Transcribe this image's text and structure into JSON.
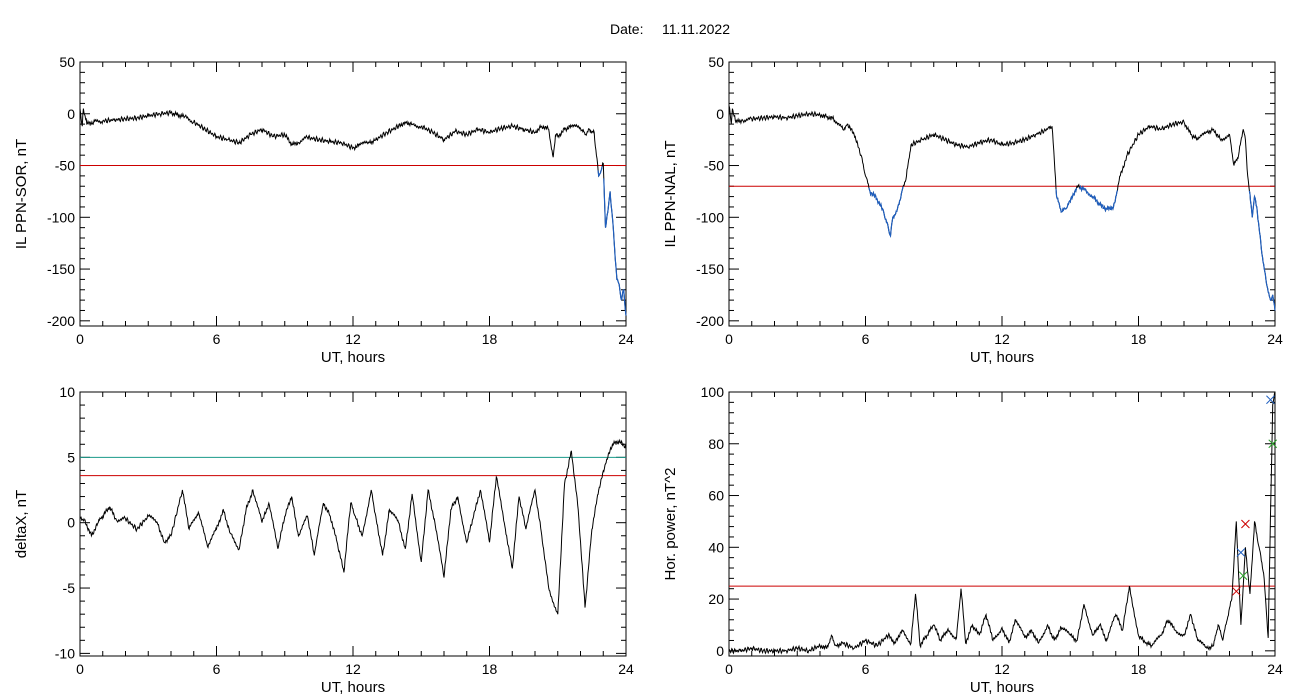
{
  "header": {
    "date_label": "Date:",
    "date_value": "11.11.2022"
  },
  "colors": {
    "data": "#000000",
    "threshold_red": "#cc0000",
    "threshold_teal": "#1a9a8a",
    "highlight_blue": "#1f5fbf",
    "marker_red": "#cc0000",
    "marker_green": "#2ca02c",
    "marker_blue": "#1f5fbf"
  },
  "chart_data": [
    {
      "id": "sor",
      "type": "line",
      "ylabel": "IL PPN-SOR, nT",
      "xlabel": "UT, hours",
      "xlim": [
        0,
        24
      ],
      "ylim": [
        -205,
        50
      ],
      "xticks": [
        0,
        6,
        12,
        18,
        24
      ],
      "yticks": [
        50,
        0,
        -50,
        -100,
        -150,
        -200
      ],
      "ytick_labels": [
        "50",
        "0",
        "-50",
        "-100",
        "-150",
        "-200"
      ],
      "threshold": [
        {
          "value": -50,
          "color": "red"
        }
      ],
      "highlight_below": -50,
      "series": [
        {
          "x": [
            0,
            0.1,
            0.15,
            0.3,
            0.6,
            1,
            1.5,
            2,
            2.5,
            3,
            3.5,
            4,
            4.3,
            4.6,
            5,
            5.5,
            6,
            6.5,
            7,
            7.5,
            8,
            8.5,
            9,
            9.3,
            9.6,
            10,
            10.5,
            11,
            11.5,
            12,
            12.3,
            12.7,
            13,
            13.5,
            14,
            14.3,
            14.6,
            15,
            15.5,
            16,
            16.5,
            17,
            17.5,
            18,
            18.5,
            19,
            19.5,
            20,
            20.3,
            20.6,
            20.8,
            20.9,
            21,
            21.3,
            21.6,
            22,
            22.2,
            22.4,
            22.6,
            22.7,
            22.8,
            22.9,
            23,
            23.1,
            23.2,
            23.3,
            23.4,
            23.5,
            23.6,
            23.7,
            23.8,
            23.9,
            24
          ],
          "y": [
            5,
            -12,
            5,
            -10,
            -8,
            -7,
            -6,
            -5,
            -4,
            -2,
            0,
            1,
            -1,
            -3,
            -8,
            -15,
            -22,
            -25,
            -28,
            -20,
            -15,
            -22,
            -20,
            -30,
            -28,
            -23,
            -25,
            -27,
            -28,
            -33,
            -30,
            -28,
            -25,
            -18,
            -12,
            -8,
            -10,
            -12,
            -18,
            -25,
            -17,
            -20,
            -15,
            -18,
            -14,
            -12,
            -15,
            -18,
            -12,
            -15,
            -42,
            -20,
            -22,
            -15,
            -12,
            -14,
            -20,
            -15,
            -18,
            -40,
            -60,
            -55,
            -48,
            -110,
            -95,
            -75,
            -100,
            -130,
            -160,
            -165,
            -180,
            -170,
            -195
          ]
        }
      ]
    },
    {
      "id": "nal",
      "type": "line",
      "ylabel": "IL PPN-NAL, nT",
      "xlabel": "UT, hours",
      "xlim": [
        0,
        24
      ],
      "ylim": [
        -205,
        50
      ],
      "xticks": [
        0,
        6,
        12,
        18,
        24
      ],
      "yticks": [
        50,
        0,
        -50,
        -100,
        -150,
        -200
      ],
      "ytick_labels": [
        "50",
        "0",
        "-50",
        "-100",
        "-150",
        "-200"
      ],
      "threshold": [
        {
          "value": -70,
          "color": "red"
        }
      ],
      "highlight_below": -70,
      "series": [
        {
          "x": [
            0,
            0.1,
            0.15,
            0.3,
            0.6,
            1,
            1.5,
            2,
            2.5,
            3,
            3.5,
            4,
            4.3,
            4.6,
            5,
            5.2,
            5.5,
            5.8,
            6,
            6.2,
            6.5,
            6.8,
            7,
            7.1,
            7.2,
            7.4,
            7.6,
            7.8,
            8,
            8.5,
            9,
            9.5,
            10,
            10.5,
            11,
            11.5,
            12,
            12.5,
            13,
            13.5,
            14,
            14.2,
            14.4,
            14.6,
            14.8,
            15,
            15.3,
            15.6,
            16,
            16.3,
            16.6,
            16.9,
            17,
            17.2,
            17.5,
            18,
            18.5,
            19,
            19.5,
            20,
            20.3,
            20.6,
            21,
            21.3,
            21.6,
            22,
            22.2,
            22.4,
            22.6,
            22.7,
            22.8,
            23,
            23.1,
            23.2,
            23.4,
            23.6,
            23.8,
            23.9,
            24
          ],
          "y": [
            8,
            -10,
            5,
            -8,
            -6,
            -5,
            -4,
            -3,
            -4,
            -2,
            0,
            -1,
            -3,
            -5,
            -15,
            -10,
            -20,
            -40,
            -60,
            -75,
            -82,
            -95,
            -110,
            -118,
            -100,
            -92,
            -75,
            -60,
            -30,
            -25,
            -20,
            -25,
            -30,
            -32,
            -28,
            -25,
            -30,
            -28,
            -25,
            -20,
            -15,
            -12,
            -80,
            -95,
            -92,
            -85,
            -70,
            -72,
            -80,
            -88,
            -92,
            -90,
            -80,
            -60,
            -40,
            -20,
            -12,
            -15,
            -10,
            -8,
            -20,
            -25,
            -18,
            -15,
            -25,
            -20,
            -50,
            -40,
            -15,
            -25,
            -60,
            -100,
            -80,
            -90,
            -130,
            -160,
            -180,
            -175,
            -190
          ]
        }
      ]
    },
    {
      "id": "deltax",
      "type": "line",
      "ylabel": "deltaX, nT",
      "xlabel": "UT, hours",
      "xlim": [
        0,
        24
      ],
      "ylim": [
        -10.2,
        10
      ],
      "xticks": [
        0,
        6,
        12,
        18,
        24
      ],
      "yticks": [
        10,
        5,
        0,
        -5,
        -10
      ],
      "ytick_labels": [
        "10",
        "5",
        "0",
        "-5",
        "-10"
      ],
      "threshold": [
        {
          "value": 5,
          "color": "teal"
        },
        {
          "value": 3.6,
          "color": "red"
        }
      ],
      "highlight_below": null,
      "series": [
        {
          "x": [
            0,
            0.2,
            0.5,
            0.8,
            1,
            1.3,
            1.6,
            2,
            2.5,
            3,
            3.4,
            3.7,
            4,
            4.5,
            4.8,
            5.2,
            5.6,
            6,
            6.3,
            6.6,
            7,
            7.3,
            7.6,
            8,
            8.3,
            8.7,
            9,
            9.3,
            9.6,
            10,
            10.3,
            10.7,
            11,
            11.3,
            11.6,
            11.9,
            12.1,
            12.4,
            12.8,
            13,
            13.3,
            13.6,
            14,
            14.3,
            14.6,
            15,
            15.3,
            15.6,
            16,
            16.3,
            16.6,
            17,
            17.3,
            17.6,
            18,
            18.3,
            18.7,
            19,
            19.3,
            19.6,
            20,
            20.3,
            20.6,
            21,
            21.3,
            21.6,
            21.9,
            22.2,
            22.5,
            22.8,
            23.1,
            23.4,
            23.7,
            24
          ],
          "y": [
            0.5,
            0.2,
            -1,
            0,
            0.5,
            1.2,
            0.2,
            0.3,
            -0.5,
            0.5,
            0,
            -1.5,
            -1,
            2.5,
            -0.5,
            0.8,
            -1.8,
            -0.5,
            1,
            -0.8,
            -2,
            1,
            2.5,
            0,
            1.5,
            -2,
            0.5,
            2,
            -1,
            0.5,
            -2.5,
            1.5,
            0.5,
            -1.5,
            -3.8,
            1.5,
            0.5,
            -1,
            2.5,
            0.5,
            -2.5,
            1,
            0,
            -2,
            2.2,
            -3,
            2.5,
            0,
            -4.2,
            1,
            2,
            -1.5,
            0.5,
            2.5,
            -1.5,
            3.5,
            -0.5,
            -3.5,
            2,
            -0.5,
            2.5,
            -1,
            -5,
            -7,
            3,
            5.5,
            1,
            -6.5,
            -0.5,
            2.5,
            4.5,
            6,
            6.2,
            5.8
          ]
        }
      ]
    },
    {
      "id": "power",
      "type": "line",
      "ylabel": "Hor. power, nT^2",
      "xlabel": "UT, hours",
      "xlim": [
        0,
        24
      ],
      "ylim": [
        -2,
        100
      ],
      "xticks": [
        0,
        6,
        12,
        18,
        24
      ],
      "yticks": [
        100,
        80,
        60,
        40,
        20,
        0
      ],
      "ytick_labels": [
        "100",
        "80",
        "60",
        "40",
        "20",
        "0"
      ],
      "threshold": [
        {
          "value": 25,
          "color": "red"
        }
      ],
      "highlight_below": null,
      "markers": [
        {
          "x": 22.3,
          "y": 23,
          "color": "red"
        },
        {
          "x": 22.7,
          "y": 49,
          "color": "red"
        },
        {
          "x": 22.6,
          "y": 29,
          "color": "green"
        },
        {
          "x": 22.5,
          "y": 38,
          "color": "blue"
        },
        {
          "x": 23.8,
          "y": 97,
          "color": "blue"
        },
        {
          "x": 23.9,
          "y": 80,
          "color": "green"
        }
      ],
      "series": [
        {
          "x": [
            0,
            0.5,
            1,
            1.5,
            2,
            2.5,
            3,
            3.5,
            4,
            4.3,
            4.5,
            4.7,
            5,
            5.5,
            6,
            6.5,
            7,
            7.3,
            7.6,
            8,
            8.2,
            8.4,
            8.7,
            9,
            9.3,
            9.6,
            10,
            10.2,
            10.4,
            10.7,
            11,
            11.3,
            11.6,
            12,
            12.3,
            12.6,
            13,
            13.3,
            13.6,
            14,
            14.3,
            14.6,
            15,
            15.3,
            15.6,
            16,
            16.3,
            16.6,
            17,
            17.3,
            17.6,
            18,
            18.3,
            18.6,
            19,
            19.3,
            19.6,
            20,
            20.3,
            20.6,
            21,
            21.3,
            21.5,
            21.7,
            21.9,
            22.1,
            22.3,
            22.5,
            22.7,
            22.9,
            23.1,
            23.3,
            23.5,
            23.7,
            23.9,
            24
          ],
          "y": [
            0,
            0,
            1,
            0,
            0,
            0,
            1,
            0,
            2,
            1,
            6,
            2,
            3,
            1,
            4,
            2,
            6,
            3,
            8,
            3,
            22,
            2,
            6,
            10,
            4,
            8,
            5,
            24,
            3,
            10,
            6,
            14,
            4,
            9,
            3,
            12,
            5,
            8,
            3,
            10,
            4,
            9,
            6,
            4,
            18,
            6,
            10,
            4,
            14,
            8,
            25,
            6,
            3,
            2,
            6,
            12,
            8,
            6,
            14,
            4,
            1,
            2,
            10,
            4,
            12,
            20,
            50,
            10,
            40,
            22,
            50,
            40,
            30,
            5,
            95,
            100
          ]
        }
      ]
    }
  ]
}
